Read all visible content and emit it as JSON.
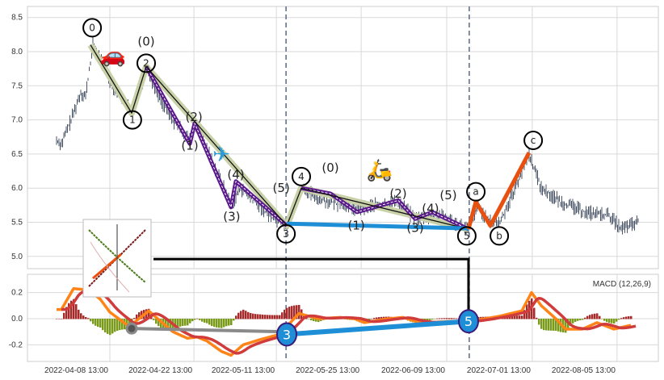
{
  "chart_data": [
    {
      "type": "line",
      "panel": "price",
      "title": "",
      "xlabel": "",
      "ylabel": "",
      "xlim": [
        0,
        260
      ],
      "ylim": [
        4.85,
        8.65
      ],
      "grid": true,
      "y_ticks": [
        "5.0",
        "5.5",
        "6.0",
        "6.5",
        "7.0",
        "7.5",
        "8.0",
        "8.5"
      ],
      "y_tick_values": [
        5.0,
        5.5,
        6.0,
        6.5,
        7.0,
        7.5,
        8.0,
        8.5
      ],
      "x_ticks": [
        "2022-04-08 13:00",
        "2022-04-22 13:00",
        "2022-05-11 13:00",
        "2022-05-25 13:00",
        "2022-06-09 13:00",
        "2022-07-01 13:00",
        "2022-08-05 13:00"
      ],
      "x_tick_index": [
        34,
        68.7,
        102.7,
        137.7,
        173,
        208.3,
        243.3
      ],
      "dashed_vlines_index": [
        106.7,
        182.3
      ],
      "price_path": [
        [
          12,
          6.7
        ],
        [
          14,
          6.65
        ],
        [
          18,
          7.0
        ],
        [
          22,
          7.4
        ],
        [
          24,
          7.35
        ],
        [
          27,
          8.1
        ],
        [
          30,
          7.9
        ],
        [
          35,
          7.5
        ],
        [
          40,
          7.3
        ],
        [
          43,
          7.1
        ],
        [
          47,
          7.5
        ],
        [
          49,
          7.75
        ],
        [
          55,
          7.3
        ],
        [
          60,
          7.0
        ],
        [
          67,
          6.7
        ],
        [
          69,
          6.95
        ],
        [
          75,
          6.5
        ],
        [
          84,
          5.75
        ],
        [
          88,
          6.0
        ],
        [
          100,
          5.6
        ],
        [
          107,
          5.45
        ],
        [
          110,
          5.7
        ],
        [
          113,
          6.0
        ],
        [
          120,
          5.85
        ],
        [
          135,
          5.7
        ],
        [
          153,
          5.8
        ],
        [
          160,
          5.55
        ],
        [
          170,
          5.6
        ],
        [
          182,
          5.4
        ],
        [
          186,
          5.75
        ],
        [
          190,
          5.5
        ],
        [
          195,
          5.5
        ],
        [
          200,
          5.9
        ],
        [
          207,
          6.5
        ],
        [
          212,
          6.0
        ],
        [
          220,
          5.8
        ],
        [
          230,
          5.65
        ],
        [
          240,
          5.6
        ],
        [
          245,
          5.4
        ],
        [
          252,
          5.5
        ]
      ],
      "waves": {
        "primary": [
          [
            26,
            8.1
          ],
          [
            43,
            7.1
          ],
          [
            49,
            7.78
          ],
          [
            107,
            5.45
          ],
          [
            113,
            6.0
          ],
          [
            182,
            5.4
          ]
        ],
        "sub_down_1": [
          [
            49,
            7.78
          ],
          [
            67,
            6.65
          ],
          [
            69,
            6.95
          ],
          [
            84,
            5.72
          ],
          [
            86,
            6.1
          ],
          [
            107,
            5.45
          ]
        ],
        "sub_down_2": [
          [
            113,
            6.0
          ],
          [
            125,
            5.92
          ],
          [
            136,
            5.65
          ],
          [
            153,
            5.82
          ],
          [
            160,
            5.55
          ],
          [
            167,
            5.65
          ],
          [
            182,
            5.4
          ]
        ],
        "blue_3_5": [
          [
            107,
            5.48
          ],
          [
            182,
            5.41
          ]
        ],
        "abc": [
          [
            182,
            5.4
          ],
          [
            185,
            5.8
          ],
          [
            191,
            5.45
          ],
          [
            207,
            6.52
          ]
        ],
        "macd_link": [
          [
            52,
            4.96
          ],
          [
            182,
            4.96
          ],
          [
            182,
            -0.02
          ]
        ]
      },
      "labels": [
        {
          "text": "0",
          "x": 26.7,
          "y": 8.35,
          "circled": true
        },
        {
          "text": "(0)",
          "x": 49,
          "y": 8.15,
          "circled": false
        },
        {
          "text": "2",
          "x": 49,
          "y": 7.83,
          "circled": true
        },
        {
          "text": "1",
          "x": 43.3,
          "y": 7.0,
          "circled": true
        },
        {
          "text": "(2)",
          "x": 68.7,
          "y": 7.04,
          "circled": false
        },
        {
          "text": "(1)",
          "x": 67,
          "y": 6.62,
          "circled": false
        },
        {
          "text": "(4)",
          "x": 86,
          "y": 6.2,
          "circled": false
        },
        {
          "text": "(3)",
          "x": 84.3,
          "y": 5.58,
          "circled": false
        },
        {
          "text": "(5)",
          "x": 106.7,
          "y": 6.0,
          "circled": false
        },
        {
          "text": "4",
          "x": 113,
          "y": 6.17,
          "circled": true
        },
        {
          "text": "(0)",
          "x": 125,
          "y": 6.3,
          "circled": false
        },
        {
          "text": "3",
          "x": 106.7,
          "y": 5.33,
          "circled": true
        },
        {
          "text": "(2)",
          "x": 153,
          "y": 5.92,
          "circled": false
        },
        {
          "text": "(1)",
          "x": 135.7,
          "y": 5.45,
          "circled": false
        },
        {
          "text": "(4)",
          "x": 166.3,
          "y": 5.7,
          "circled": false
        },
        {
          "text": "(3)",
          "x": 160,
          "y": 5.42,
          "circled": false
        },
        {
          "text": "(5)",
          "x": 181,
          "y": 5.85,
          "circled": false
        },
        {
          "text": "a",
          "x": 183.7,
          "y": 5.9,
          "circled": true
        },
        {
          "text": "5",
          "x": 181.3,
          "y": 5.3,
          "circled": true
        },
        {
          "text": "b",
          "x": 194.7,
          "y": 5.3,
          "circled": true
        },
        {
          "text": "c",
          "x": 208.7,
          "y": 6.7,
          "circled": true
        }
      ],
      "icons": [
        {
          "name": "car-icon",
          "glyph": "🚗",
          "x": 35.3,
          "y": 7.95
        },
        {
          "name": "airplane-icon",
          "glyph": "✈",
          "x": 78,
          "y": 6.5
        },
        {
          "name": "scooter-icon",
          "glyph": "🛵",
          "x": 148.7,
          "y": 6.08
        }
      ]
    },
    {
      "type": "line",
      "panel": "macd",
      "legend": "MACD (12,26,9)",
      "legend_placement": "top-right",
      "ylim": [
        -0.33,
        0.35
      ],
      "y_ticks": [
        "-0.2",
        "0.0",
        "0.2"
      ],
      "y_tick_values": [
        -0.2,
        0.0,
        0.2
      ],
      "macd": [
        [
          12,
          0.07
        ],
        [
          14,
          0.07
        ],
        [
          19,
          0.23
        ],
        [
          25,
          0.22
        ],
        [
          30,
          0.15
        ],
        [
          34,
          0.05
        ],
        [
          42,
          -0.06
        ],
        [
          46,
          0.0
        ],
        [
          50,
          0.06
        ],
        [
          55,
          -0.02
        ],
        [
          60,
          -0.1
        ],
        [
          66,
          -0.15
        ],
        [
          70,
          -0.14
        ],
        [
          74,
          -0.17
        ],
        [
          80,
          -0.25
        ],
        [
          84,
          -0.28
        ],
        [
          89,
          -0.2
        ],
        [
          96,
          -0.16
        ],
        [
          104,
          -0.12
        ],
        [
          109,
          -0.02
        ],
        [
          112,
          0.04
        ],
        [
          116,
          0.02
        ],
        [
          120,
          0.0
        ],
        [
          129,
          0.01
        ],
        [
          135,
          0.0
        ],
        [
          139,
          -0.03
        ],
        [
          149,
          0.0
        ],
        [
          155,
          0.01
        ],
        [
          160,
          -0.02
        ],
        [
          165,
          -0.03
        ],
        [
          175,
          -0.02
        ],
        [
          182,
          -0.02
        ],
        [
          189,
          0.0
        ],
        [
          195,
          0.02
        ],
        [
          204,
          0.06
        ],
        [
          208,
          0.2
        ],
        [
          212,
          0.1
        ],
        [
          218,
          0.0
        ],
        [
          222,
          -0.08
        ],
        [
          229,
          -0.08
        ],
        [
          235,
          -0.03
        ],
        [
          242,
          -0.08
        ],
        [
          249,
          -0.05
        ]
      ],
      "annotation_lines": {
        "gray": [
          [
            43,
            -0.075
          ],
          [
            107,
            -0.1
          ]
        ],
        "blue": [
          [
            107,
            -0.12
          ],
          [
            182,
            -0.02
          ]
        ]
      },
      "markers": [
        {
          "text": "3",
          "x": 107,
          "y": -0.12
        },
        {
          "text": "5",
          "x": 182,
          "y": -0.02
        }
      ]
    }
  ],
  "inset": {
    "name": "thumbnail-image"
  },
  "colors": {
    "bars": "#4a5568",
    "grid": "#d9d9d9",
    "beige": "#c9d1a9",
    "purple": "#5a1a8c",
    "blue": "#1e8fd6",
    "orange_wave": "#e8500f",
    "macd": "#ff8418",
    "signal": "#d03b3b",
    "hist_pos": "#a52a2a",
    "hist_neg": "#7a9a1a",
    "gray": "#8a8a8a"
  }
}
